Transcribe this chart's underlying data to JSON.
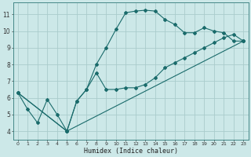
{
  "xlabel": "Humidex (Indice chaleur)",
  "background_color": "#cce8e8",
  "grid_color": "#aacccc",
  "line_color": "#1a6b6b",
  "xlim": [
    -0.5,
    23.5
  ],
  "ylim": [
    3.5,
    11.7
  ],
  "xticks": [
    0,
    1,
    2,
    3,
    4,
    5,
    6,
    7,
    8,
    9,
    10,
    11,
    12,
    13,
    14,
    15,
    16,
    17,
    18,
    19,
    20,
    21,
    22,
    23
  ],
  "yticks": [
    4,
    5,
    6,
    7,
    8,
    9,
    10,
    11
  ],
  "line1_x": [
    0,
    1,
    2,
    3,
    4,
    5,
    6,
    7,
    8,
    9,
    10,
    11,
    12,
    13,
    14,
    15,
    16,
    17,
    18,
    19,
    20,
    21,
    22,
    23
  ],
  "line1_y": [
    6.3,
    5.3,
    4.5,
    5.9,
    5.0,
    4.0,
    5.8,
    6.5,
    7.5,
    6.5,
    6.5,
    6.6,
    6.6,
    6.8,
    7.2,
    7.8,
    8.1,
    8.4,
    8.7,
    9.0,
    9.3,
    9.6,
    9.8,
    9.4
  ],
  "line2_x": [
    0,
    5,
    6,
    7,
    8,
    9,
    10,
    11,
    12,
    13,
    14,
    15,
    16,
    17,
    18,
    19,
    20,
    21,
    22,
    23
  ],
  "line2_y": [
    6.3,
    4.0,
    5.8,
    6.5,
    8.0,
    9.0,
    10.1,
    11.1,
    11.2,
    11.25,
    11.2,
    10.7,
    10.4,
    9.9,
    9.9,
    10.2,
    10.0,
    9.9,
    9.4,
    9.4
  ],
  "line3_x": [
    0,
    5,
    23
  ],
  "line3_y": [
    6.3,
    4.0,
    9.4
  ]
}
